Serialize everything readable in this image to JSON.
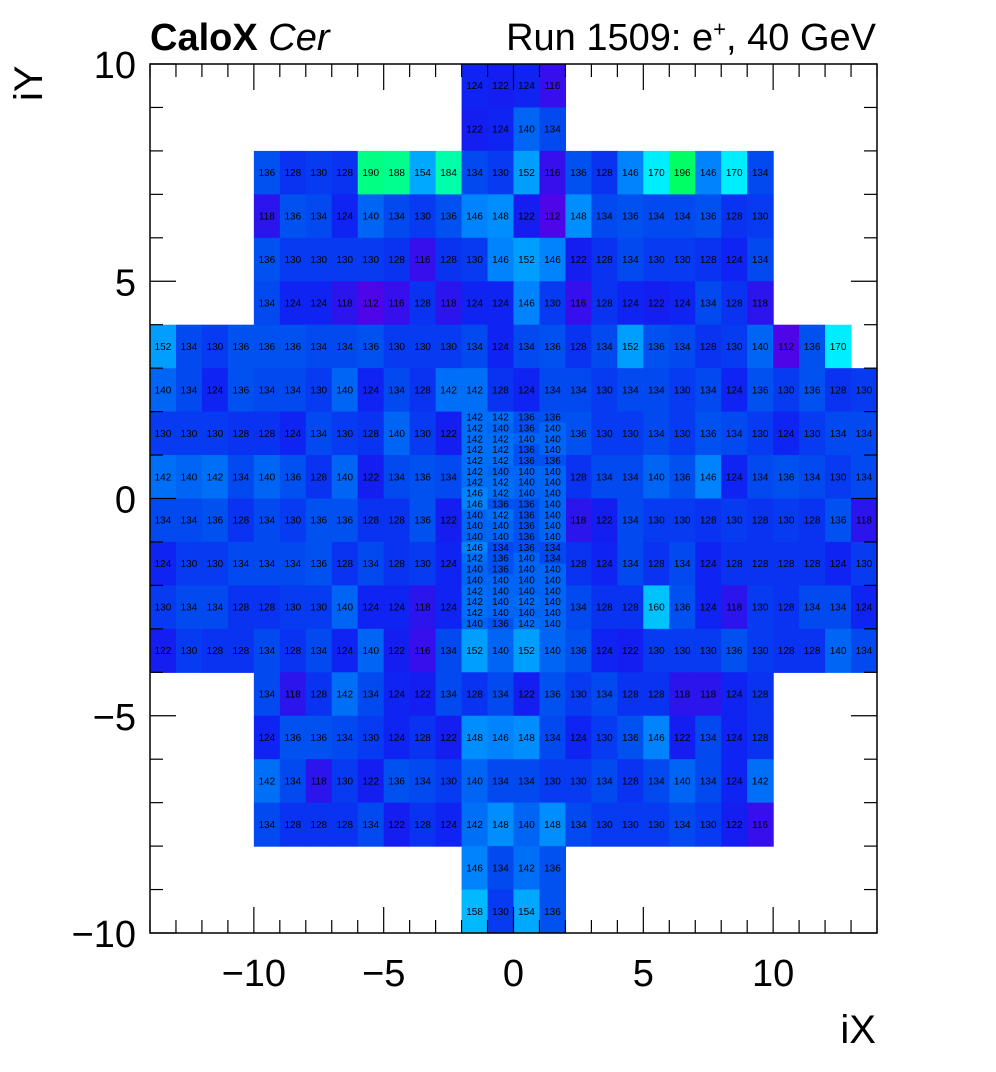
{
  "title": {
    "detector": "CaloX",
    "channel": "Cer",
    "run_info_prefix": "Run 1509: e",
    "particle_charge": "+",
    "run_info_suffix": ", 40 GeV"
  },
  "chart_data": {
    "type": "heatmap",
    "xlabel": "iX",
    "ylabel": "iY",
    "xlim": [
      -14,
      14
    ],
    "ylim": [
      -10,
      10
    ],
    "xticks": [
      -10,
      -5,
      0,
      5,
      10
    ],
    "yticks": [
      -10,
      -5,
      0,
      5,
      10
    ],
    "xtick_labels": [
      "−10",
      "−5",
      "0",
      "5",
      "10"
    ],
    "ytick_labels": [
      "−10",
      "−5",
      "0",
      "5",
      "10"
    ],
    "color_scale": {
      "min": 110,
      "max": 200,
      "colors": [
        "#5a00e6",
        "#1020f2",
        "#0050f0",
        "#0090ff",
        "#00c8ff",
        "#00ffff",
        "#00ff90",
        "#00ff50"
      ]
    },
    "grid": false,
    "rows": [
      {
        "y": 9.5,
        "segments": [
          {
            "x0": -2,
            "values": [
              124,
              122,
              124,
              116
            ]
          }
        ]
      },
      {
        "y": 8.5,
        "segments": [
          {
            "x0": -2,
            "values": [
              122,
              124,
              140,
              134
            ]
          }
        ]
      },
      {
        "y": 7.5,
        "segments": [
          {
            "x0": -10,
            "values": [
              136,
              128,
              130,
              128,
              190,
              188,
              154,
              184,
              134,
              130,
              152,
              116,
              136,
              128,
              146,
              170,
              196,
              146,
              170,
              134
            ]
          }
        ]
      },
      {
        "y": 6.5,
        "segments": [
          {
            "x0": -10,
            "values": [
              118,
              136,
              134,
              124,
              140,
              134,
              130,
              136,
              146,
              148,
              122,
              112,
              148,
              134,
              136,
              134,
              134,
              136,
              128,
              130
            ]
          }
        ]
      },
      {
        "y": 5.5,
        "segments": [
          {
            "x0": -10,
            "values": [
              136,
              130,
              130,
              130,
              130,
              128,
              116,
              128,
              130,
              146,
              152,
              146,
              122,
              128,
              134,
              130,
              130,
              128,
              124,
              134
            ]
          }
        ]
      },
      {
        "y": 4.5,
        "segments": [
          {
            "x0": -10,
            "values": [
              134,
              124,
              124,
              118,
              112,
              116,
              128,
              118,
              124,
              124,
              146,
              130,
              116,
              128,
              124,
              122,
              124,
              134,
              128,
              118
            ]
          }
        ]
      },
      {
        "y": 3.5,
        "segments": [
          {
            "x0": -14,
            "values": [
              152,
              134,
              130,
              136,
              136,
              136,
              134,
              134,
              136,
              130,
              130,
              130,
              134,
              124,
              134,
              136,
              128,
              134,
              152,
              136,
              134,
              128,
              130,
              140,
              112,
              136,
              170
            ]
          }
        ]
      },
      {
        "y": 2.5,
        "segments": [
          {
            "x0": -14,
            "values": [
              140,
              134,
              124,
              136,
              134,
              134,
              130,
              140,
              124,
              134,
              128,
              142,
              142,
              128,
              124,
              134,
              134,
              130,
              134,
              134,
              130,
              134,
              124,
              136,
              130,
              136,
              128,
              130
            ]
          }
        ]
      },
      {
        "y": 1.5,
        "segments": [
          {
            "x0": -14,
            "values": [
              130,
              130,
              130,
              128,
              128,
              124,
              134,
              130,
              128,
              140,
              130,
              122
            ]
          },
          {
            "x0": 2,
            "values": [
              136,
              130,
              130,
              134,
              130,
              136,
              134,
              130,
              124,
              130,
              134,
              134
            ]
          }
        ]
      },
      {
        "y": 0.5,
        "segments": [
          {
            "x0": -14,
            "values": [
              142,
              140,
              142,
              134,
              140,
              136,
              128,
              140,
              122,
              134,
              136,
              134
            ]
          },
          {
            "x0": 2,
            "values": [
              128,
              134,
              134,
              140,
              136,
              146,
              124,
              134,
              136,
              134,
              130,
              134
            ]
          }
        ]
      },
      {
        "y": -0.5,
        "segments": [
          {
            "x0": -14,
            "values": [
              134,
              134,
              136,
              128,
              134,
              130,
              136,
              136,
              128,
              128,
              136,
              122
            ]
          },
          {
            "x0": 2,
            "values": [
              118,
              122,
              134,
              130,
              130,
              128,
              130,
              128,
              130,
              128,
              136,
              118
            ]
          }
        ]
      },
      {
        "y": -1.5,
        "segments": [
          {
            "x0": -14,
            "values": [
              124,
              130,
              130,
              134,
              134,
              134,
              136,
              128,
              134,
              128,
              130,
              124
            ]
          },
          {
            "x0": 2,
            "values": [
              128,
              124,
              134,
              128,
              134,
              124,
              128,
              128,
              128,
              128,
              124,
              130
            ]
          }
        ]
      },
      {
        "y": -2.5,
        "segments": [
          {
            "x0": -14,
            "values": [
              130,
              134,
              134,
              128,
              128,
              130,
              130,
              140,
              124,
              124,
              118,
              124,
              122,
              128,
              134,
              152,
              134,
              128,
              128,
              160,
              136,
              124,
              118,
              130,
              128,
              134,
              134,
              124
            ]
          }
        ]
      },
      {
        "y": -3.5,
        "segments": [
          {
            "x0": -14,
            "values": [
              122,
              130,
              128,
              128,
              134,
              128,
              134,
              124,
              140,
              122,
              116,
              134,
              152,
              140,
              152,
              140,
              136,
              124,
              122,
              130,
              130,
              130,
              136,
              130,
              128,
              128,
              140,
              134
            ]
          }
        ]
      },
      {
        "y": -4.5,
        "segments": [
          {
            "x0": -10,
            "values": [
              134,
              118,
              128,
              142,
              134,
              124,
              122,
              134,
              128,
              134,
              122,
              136,
              130,
              134,
              128,
              128,
              118,
              118,
              124,
              128
            ]
          }
        ]
      },
      {
        "y": -5.5,
        "segments": [
          {
            "x0": -10,
            "values": [
              124,
              136,
              136,
              134,
              130,
              124,
              128,
              122,
              148,
              146,
              148,
              134,
              124,
              130,
              136,
              146,
              122,
              134,
              124,
              128
            ]
          }
        ]
      },
      {
        "y": -6.5,
        "segments": [
          {
            "x0": -10,
            "values": [
              142,
              134,
              118,
              130,
              122,
              136,
              134,
              130,
              140,
              134,
              134,
              130,
              130,
              134,
              128,
              134,
              140,
              134,
              124,
              142
            ]
          }
        ]
      },
      {
        "y": -7.5,
        "segments": [
          {
            "x0": -10,
            "values": [
              134,
              128,
              128,
              128,
              134,
              122,
              128,
              124,
              142,
              148,
              140,
              148,
              134,
              130,
              130,
              130,
              134,
              130,
              122,
              116
            ]
          }
        ]
      },
      {
        "y": -8.5,
        "segments": [
          {
            "x0": -2,
            "values": [
              146,
              134,
              142,
              136
            ]
          }
        ]
      },
      {
        "y": -9.5,
        "segments": [
          {
            "x0": -2,
            "values": [
              158,
              130,
              154,
              136
            ]
          }
        ]
      }
    ],
    "fine_grid": {
      "x0": -2,
      "x1": 2,
      "y_top": 2,
      "cell_w": 1,
      "cell_h": 0.25,
      "rows": [
        [
          142,
          142,
          136,
          136
        ],
        [
          142,
          140,
          136,
          140
        ],
        [
          142,
          142,
          140,
          140
        ],
        [
          142,
          142,
          136,
          140
        ],
        [
          142,
          142,
          136,
          136
        ],
        [
          142,
          140,
          140,
          140
        ],
        [
          142,
          142,
          140,
          140
        ],
        [
          146,
          142,
          140,
          140
        ],
        [
          146,
          136,
          136,
          140
        ],
        [
          140,
          142,
          136,
          140
        ],
        [
          140,
          140,
          136,
          140
        ],
        [
          140,
          140,
          136,
          140
        ],
        [
          146,
          134,
          136,
          134
        ],
        [
          142,
          136,
          140,
          134
        ],
        [
          140,
          136,
          140,
          140
        ],
        [
          140,
          140,
          140,
          140
        ],
        [
          142,
          140,
          140,
          140
        ],
        [
          142,
          140,
          142,
          140
        ],
        [
          142,
          140,
          140,
          140
        ],
        [
          140,
          136,
          142,
          140
        ]
      ]
    }
  }
}
